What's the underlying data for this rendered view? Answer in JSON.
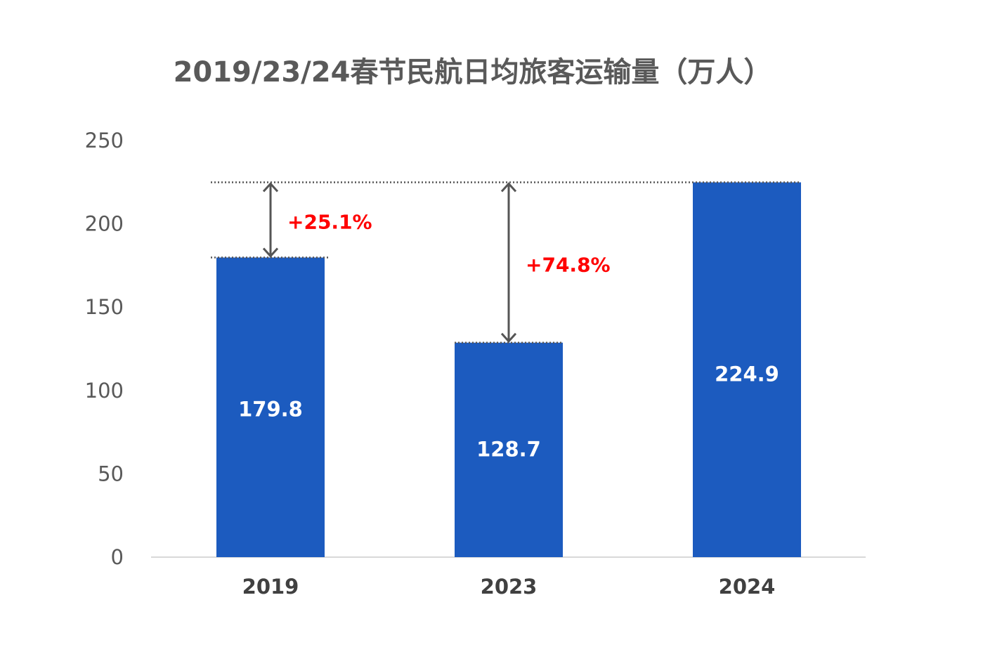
{
  "chart_data": {
    "type": "bar",
    "title": "2019/23/24春节民航日均旅客运输量（万人）",
    "categories": [
      "2019",
      "2023",
      "2024"
    ],
    "values": [
      179.8,
      128.7,
      224.9
    ],
    "value_labels": [
      "179.8",
      "128.7",
      "224.9"
    ],
    "ylim": [
      0,
      250
    ],
    "yticks": [
      "0",
      "50",
      "100",
      "150",
      "200",
      "250"
    ],
    "ytick_values": [
      0,
      50,
      100,
      150,
      200,
      250
    ],
    "bar_color": "#1c5bbf",
    "grid": false,
    "legend": "none",
    "annotations": [
      {
        "from": "2019",
        "to": "2024",
        "label": "+25.1%"
      },
      {
        "from": "2023",
        "to": "2024",
        "label": "+74.8%"
      }
    ]
  }
}
